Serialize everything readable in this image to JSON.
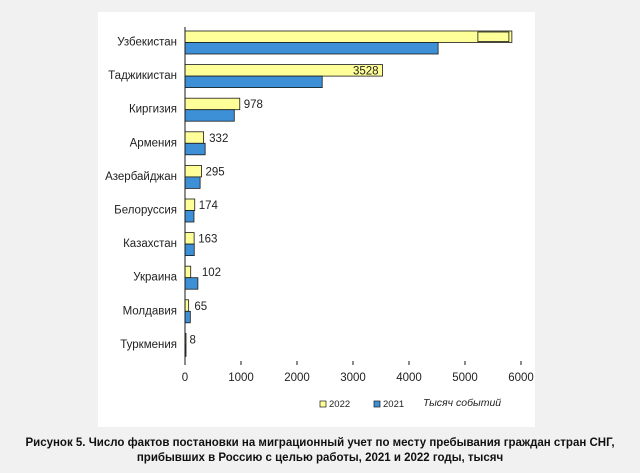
{
  "chart_data": {
    "type": "bar",
    "orientation": "horizontal",
    "categories": [
      "Узбекистан",
      "Таджикистан",
      "Киргизия",
      "Армения",
      "Азербайджан",
      "Белоруссия",
      "Казахстан",
      "Украина",
      "Молдавия",
      "Туркмения"
    ],
    "series": [
      {
        "name": "2022",
        "color": "#ffff99",
        "values": [
          5837,
          3528,
          978,
          332,
          295,
          174,
          163,
          102,
          65,
          8
        ]
      },
      {
        "name": "2021",
        "color": "#3d8fd6",
        "values": [
          4520,
          2450,
          880,
          360,
          270,
          160,
          165,
          230,
          95,
          6
        ]
      }
    ],
    "value_labels": [
      "5837",
      "3528",
      "978",
      "332",
      "295",
      "174",
      "163",
      "102",
      "65",
      "8"
    ],
    "xlim": [
      0,
      6000
    ],
    "xticks": [
      "0",
      "1000",
      "2000",
      "3000",
      "4000",
      "5000",
      "6000"
    ],
    "x_unit_label": "Тысяч событий",
    "legend_position": "bottom-left",
    "grid": false
  },
  "caption": {
    "line1": "Рисунок 5. Число фактов постановки на миграционный учет по месту пребывания граждан стран СНГ,",
    "line2": "прибывших в Россию с целью работы, 2021 и 2022 годы, тысяч"
  }
}
